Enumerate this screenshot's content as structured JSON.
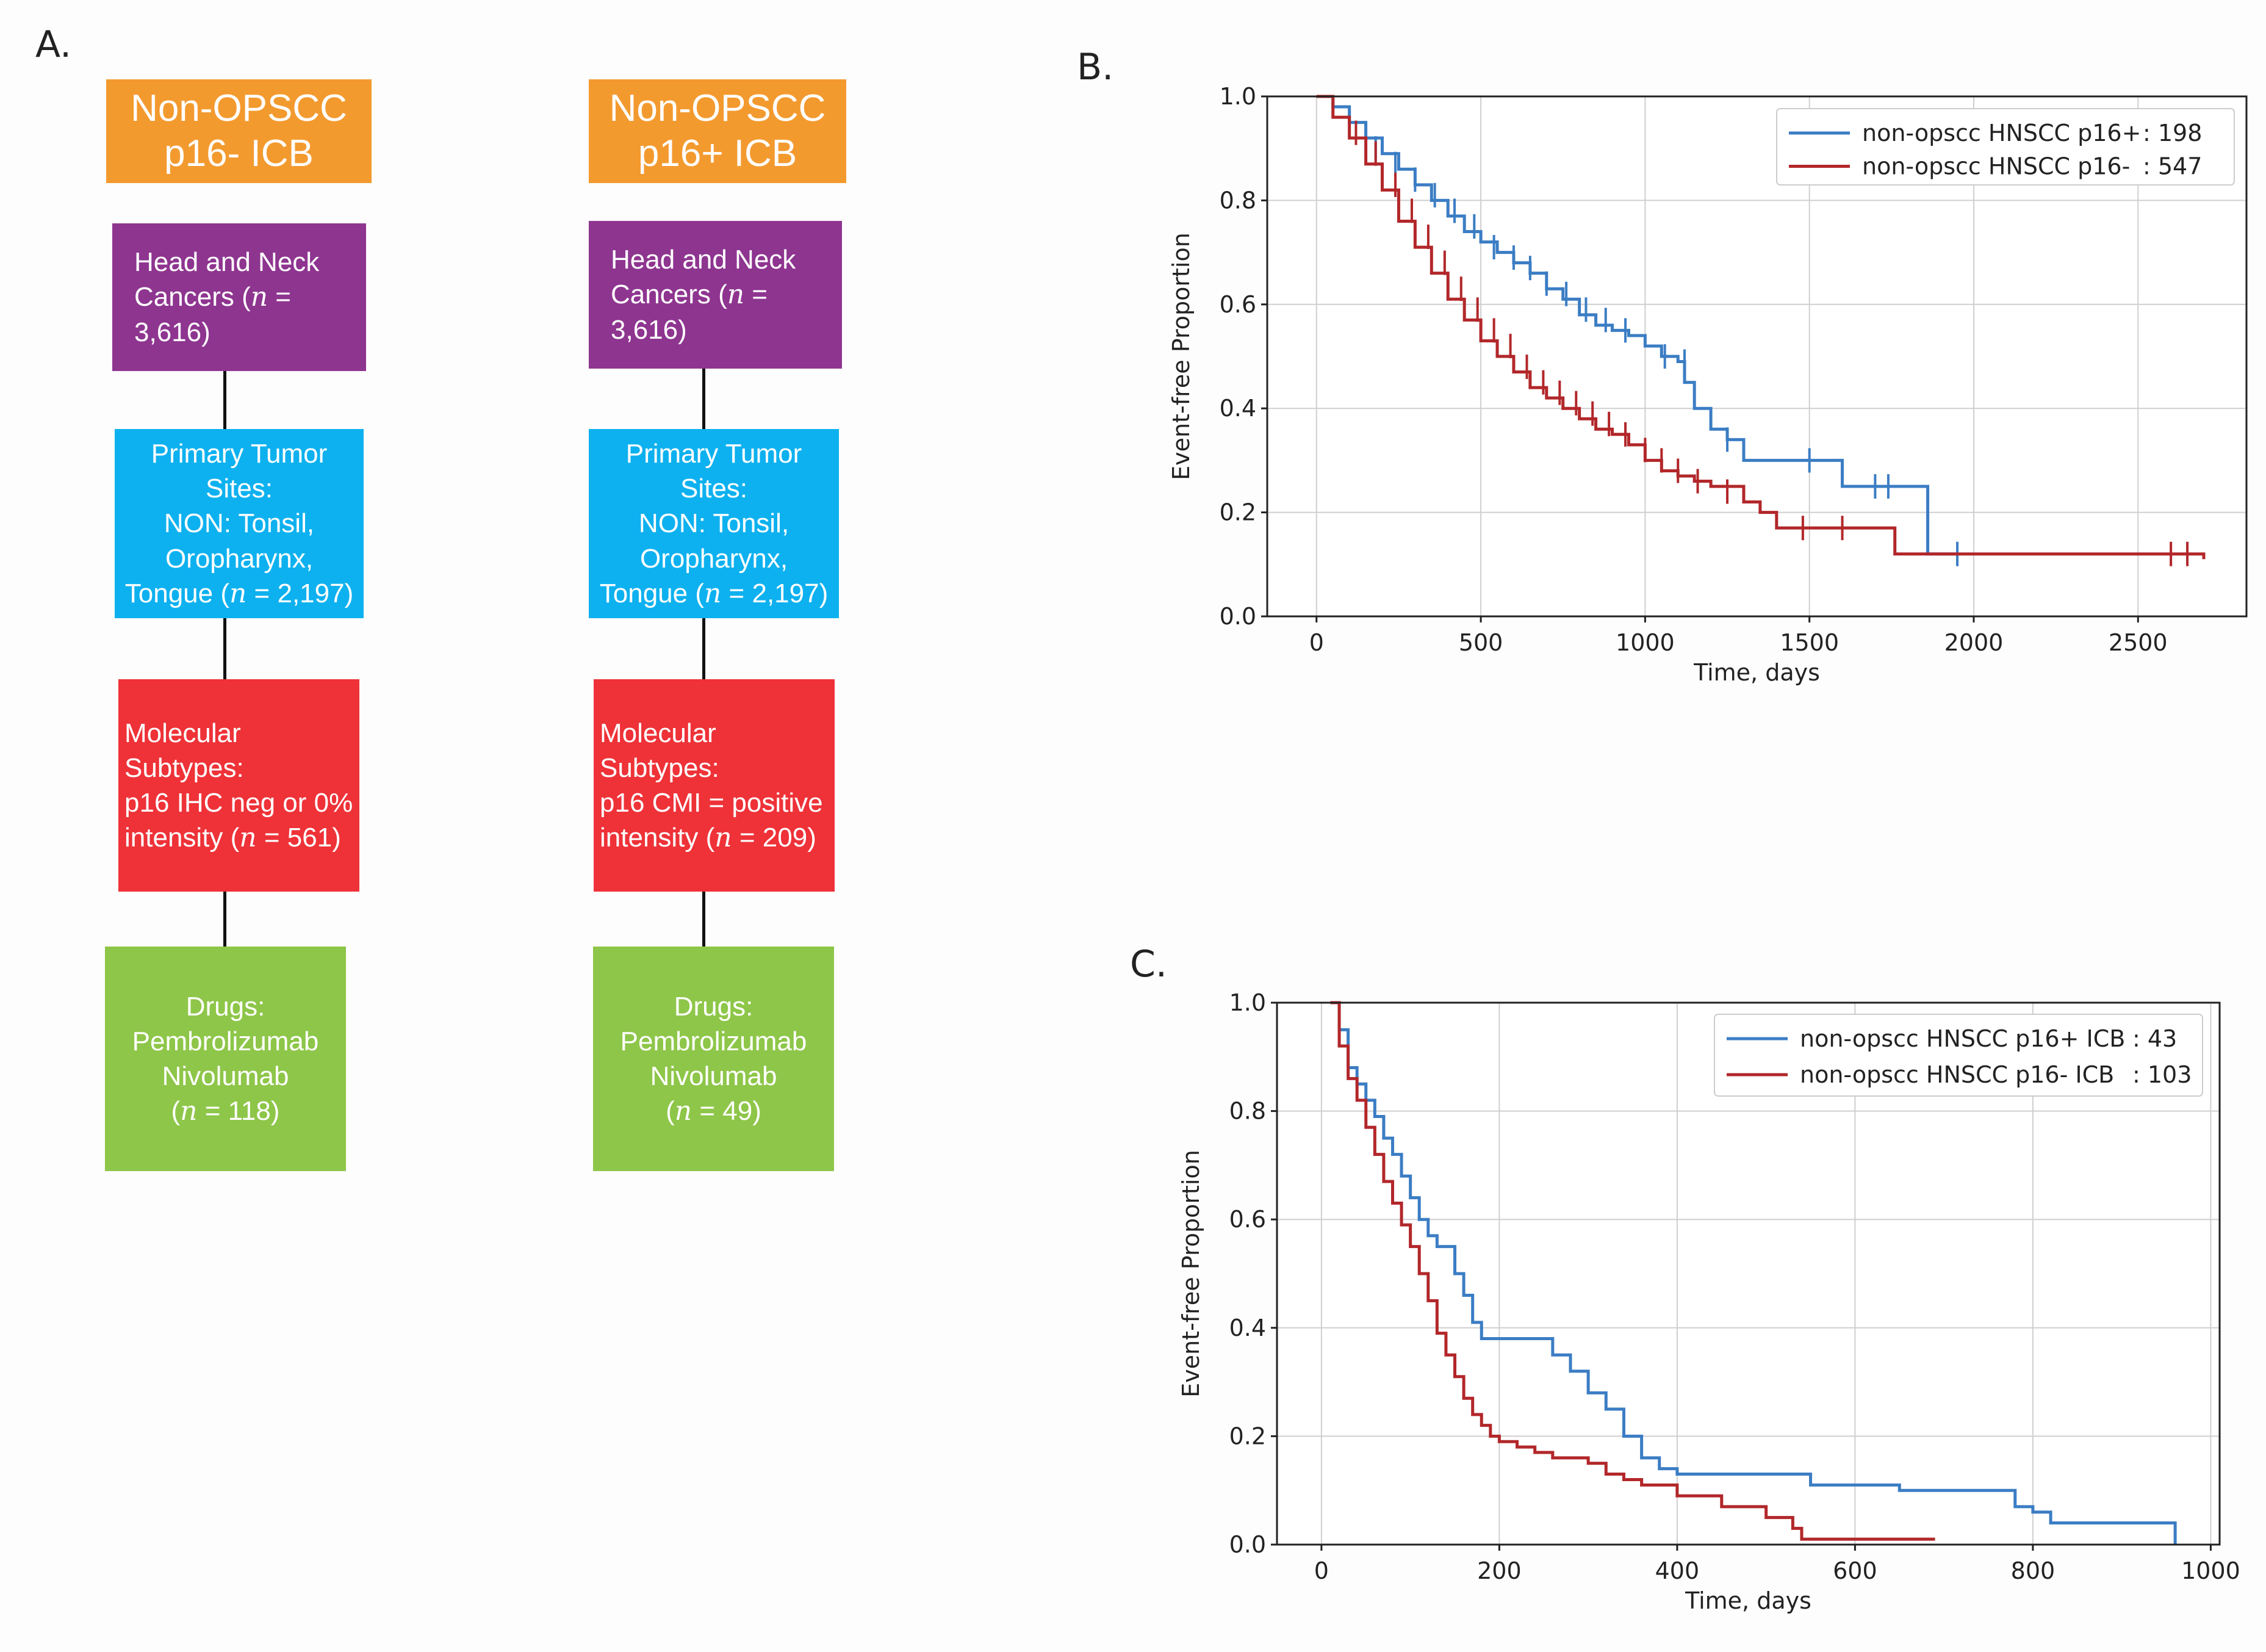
{
  "panels": {
    "a": "A.",
    "b": "B.",
    "c": "C."
  },
  "flow_left": {
    "header": "Non-OPSCC\np16- ICB",
    "cancers": "Head and Neck\nCancers (n = 3,616)",
    "sites": "Primary Tumor Sites:\nNON: Tonsil,\nOropharynx,\nTongue (n = 2,197)",
    "subtypes": "Molecular Subtypes:\np16 IHC neg or 0%\nintensity (n = 561)",
    "drugs": "Drugs:\nPembrolizumab\nNivolumab\n(n = 118)"
  },
  "flow_right": {
    "header": "Non-OPSCC\np16+ ICB",
    "cancers": "Head and Neck\nCancers (n = 3,616)",
    "sites": "Primary Tumor Sites:\nNON: Tonsil,\nOropharynx,\nTongue (n = 2,197)",
    "subtypes": "Molecular Subtypes:\np16 CMI = positive\nintensity (n = 209)",
    "drugs": "Drugs:\nPembrolizumab\nNivolumab\n(n = 49)"
  },
  "colors": {
    "blue": "#3b7dc4",
    "red": "#b2272a",
    "grid": "#cfcfcf"
  },
  "chart_data": [
    {
      "id": "B",
      "type": "line",
      "title": "",
      "xlabel": "Time, days",
      "ylabel": "Event-free Proportion",
      "xlim": [
        -150,
        2830
      ],
      "ylim": [
        0,
        1.0
      ],
      "xticks": [
        0,
        500,
        1000,
        1500,
        2000,
        2500
      ],
      "yticks": [
        0.0,
        0.2,
        0.4,
        0.6,
        0.8,
        1.0
      ],
      "xtick_labels": [
        "0",
        "500",
        "1000",
        "1500",
        "2000",
        "2500"
      ],
      "ytick_labels": [
        "0.0",
        "0.2",
        "0.4",
        "0.6",
        "0.8",
        "1.0"
      ],
      "legend_position": "top-right",
      "series": [
        {
          "name": "non-opscc HNSCC p16+",
          "count_label": ": 198",
          "color": "#3b7dc4",
          "x": [
            0,
            50,
            100,
            150,
            200,
            250,
            300,
            350,
            400,
            450,
            500,
            550,
            600,
            650,
            700,
            750,
            800,
            850,
            900,
            950,
            1000,
            1050,
            1100,
            1120,
            1150,
            1200,
            1250,
            1300,
            1400,
            1500,
            1600,
            1700,
            1800,
            1860,
            1900,
            1950
          ],
          "y": [
            1.0,
            0.98,
            0.95,
            0.92,
            0.89,
            0.86,
            0.83,
            0.8,
            0.77,
            0.74,
            0.72,
            0.7,
            0.68,
            0.66,
            0.63,
            0.61,
            0.58,
            0.56,
            0.55,
            0.54,
            0.52,
            0.5,
            0.49,
            0.45,
            0.4,
            0.36,
            0.34,
            0.3,
            0.3,
            0.3,
            0.25,
            0.25,
            0.25,
            0.12,
            0.12,
            0.12
          ],
          "censor_x": [
            180,
            240,
            300,
            360,
            420,
            480,
            540,
            600,
            650,
            700,
            760,
            820,
            880,
            940,
            1060,
            1120,
            1250,
            1500,
            1700,
            1740,
            1950
          ],
          "censor_y": [
            0.9,
            0.87,
            0.84,
            0.81,
            0.78,
            0.75,
            0.71,
            0.69,
            0.67,
            0.64,
            0.62,
            0.59,
            0.57,
            0.55,
            0.5,
            0.49,
            0.34,
            0.3,
            0.25,
            0.25,
            0.12
          ]
        },
        {
          "name": "non-opscc HNSCC p16-",
          "count_label": ": 547",
          "color": "#b2272a",
          "x": [
            0,
            50,
            100,
            150,
            200,
            250,
            300,
            350,
            400,
            450,
            500,
            550,
            600,
            650,
            700,
            750,
            800,
            850,
            900,
            950,
            1000,
            1050,
            1100,
            1150,
            1200,
            1300,
            1350,
            1400,
            1500,
            1600,
            1700,
            1760,
            1800,
            2000,
            2200,
            2400,
            2600,
            2700
          ],
          "y": [
            1.0,
            0.96,
            0.92,
            0.87,
            0.82,
            0.76,
            0.71,
            0.66,
            0.61,
            0.57,
            0.53,
            0.5,
            0.47,
            0.44,
            0.42,
            0.4,
            0.38,
            0.36,
            0.35,
            0.33,
            0.3,
            0.28,
            0.27,
            0.26,
            0.25,
            0.22,
            0.2,
            0.17,
            0.17,
            0.17,
            0.17,
            0.12,
            0.12,
            0.12,
            0.12,
            0.12,
            0.12,
            0.11
          ],
          "censor_x": [
            120,
            180,
            240,
            290,
            340,
            390,
            440,
            490,
            540,
            590,
            640,
            690,
            740,
            790,
            840,
            890,
            940,
            1000,
            1050,
            1100,
            1160,
            1250,
            1480,
            1600,
            2600,
            2650
          ],
          "censor_y": [
            0.93,
            0.89,
            0.83,
            0.78,
            0.73,
            0.68,
            0.63,
            0.59,
            0.55,
            0.52,
            0.48,
            0.45,
            0.43,
            0.41,
            0.39,
            0.37,
            0.35,
            0.32,
            0.3,
            0.28,
            0.26,
            0.24,
            0.17,
            0.17,
            0.12,
            0.12
          ]
        }
      ]
    },
    {
      "id": "C",
      "type": "line",
      "title": "",
      "xlabel": "Time, days",
      "ylabel": "Event-free Proportion",
      "xlim": [
        -50,
        1010
      ],
      "ylim": [
        0,
        1.0
      ],
      "xticks": [
        0,
        200,
        400,
        600,
        800,
        1000
      ],
      "yticks": [
        0.0,
        0.2,
        0.4,
        0.6,
        0.8,
        1.0
      ],
      "xtick_labels": [
        "0",
        "200",
        "400",
        "600",
        "800",
        "1000"
      ],
      "ytick_labels": [
        "0.0",
        "0.2",
        "0.4",
        "0.6",
        "0.8",
        "1.0"
      ],
      "legend_position": "top-right",
      "series": [
        {
          "name": "non-opscc HNSCC p16+ ICB",
          "count_label": ": 43",
          "color": "#3b7dc4",
          "x": [
            10,
            20,
            30,
            40,
            50,
            60,
            70,
            80,
            90,
            100,
            110,
            120,
            130,
            150,
            160,
            170,
            180,
            250,
            260,
            280,
            300,
            320,
            340,
            360,
            380,
            400,
            550,
            650,
            780,
            800,
            820,
            960
          ],
          "y": [
            1.0,
            0.95,
            0.88,
            0.85,
            0.82,
            0.79,
            0.75,
            0.72,
            0.68,
            0.64,
            0.6,
            0.57,
            0.55,
            0.5,
            0.46,
            0.41,
            0.38,
            0.38,
            0.35,
            0.32,
            0.28,
            0.25,
            0.2,
            0.16,
            0.14,
            0.13,
            0.11,
            0.1,
            0.07,
            0.06,
            0.04,
            0.0
          ]
        },
        {
          "name": "non-opscc HNSCC p16- ICB",
          "count_label": ": 103",
          "color": "#b2272a",
          "x": [
            10,
            20,
            30,
            40,
            50,
            60,
            70,
            80,
            90,
            100,
            110,
            120,
            130,
            140,
            150,
            160,
            170,
            180,
            190,
            200,
            220,
            240,
            260,
            300,
            320,
            340,
            360,
            400,
            450,
            500,
            530,
            540,
            600,
            690
          ],
          "y": [
            1.0,
            0.92,
            0.86,
            0.82,
            0.77,
            0.72,
            0.67,
            0.63,
            0.59,
            0.55,
            0.5,
            0.45,
            0.39,
            0.35,
            0.31,
            0.27,
            0.24,
            0.22,
            0.2,
            0.19,
            0.18,
            0.17,
            0.16,
            0.15,
            0.13,
            0.12,
            0.11,
            0.09,
            0.07,
            0.05,
            0.03,
            0.01,
            0.01,
            0.01
          ]
        }
      ]
    }
  ]
}
